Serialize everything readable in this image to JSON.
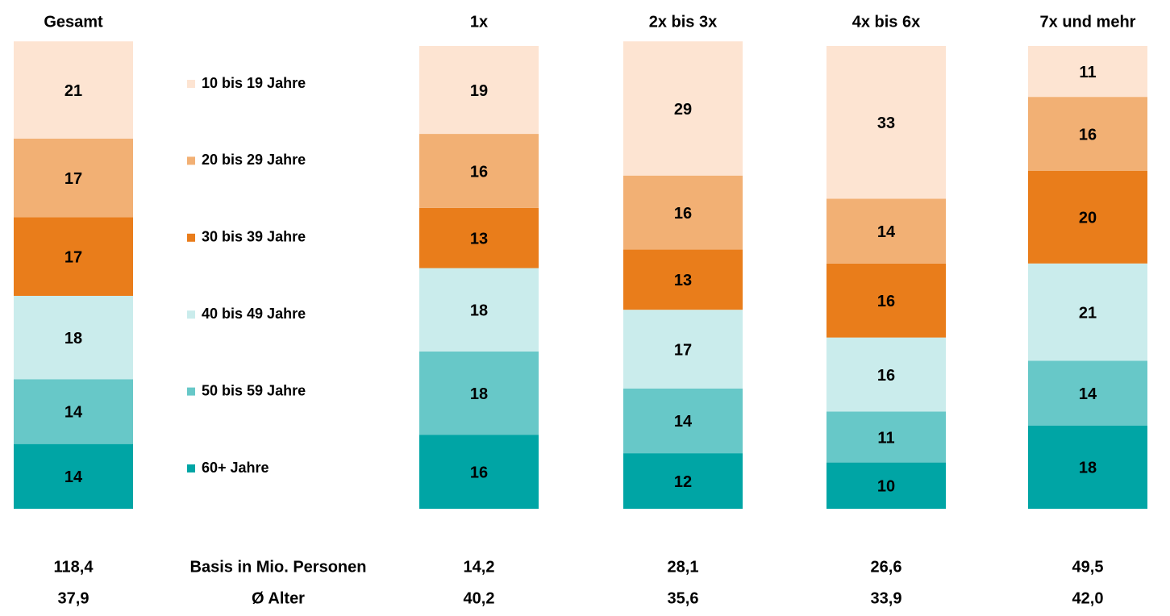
{
  "chart_data": {
    "type": "stacked_bar",
    "categories": [
      "Gesamt",
      "1x",
      "2x bis 3x",
      "4x bis 6x",
      "7x und mehr"
    ],
    "series": [
      {
        "name": "10 bis 19 Jahre",
        "color": "#fde4d2",
        "values": [
          21,
          19,
          29,
          33,
          11
        ]
      },
      {
        "name": "20 bis 29 Jahre",
        "color": "#f2b074",
        "values": [
          17,
          16,
          16,
          14,
          16
        ]
      },
      {
        "name": "30 bis 39 Jahre",
        "color": "#e97d1b",
        "values": [
          17,
          13,
          13,
          16,
          20
        ]
      },
      {
        "name": "40 bis 49 Jahre",
        "color": "#caecec",
        "values": [
          18,
          18,
          17,
          16,
          21
        ]
      },
      {
        "name": "50 bis 59 Jahre",
        "color": "#67c8c8",
        "values": [
          14,
          18,
          14,
          11,
          14
        ]
      },
      {
        "name": "60+ Jahre",
        "color": "#00a5a5",
        "values": [
          14,
          16,
          12,
          10,
          18
        ]
      }
    ],
    "ylim": [
      0,
      100
    ],
    "rows": [
      {
        "label": "Basis in Mio. Personen",
        "values": [
          118.4,
          14.2,
          28.1,
          26.6,
          49.5
        ],
        "value_labels": [
          "118,4",
          "14,2",
          "28,1",
          "26,6",
          "49,5"
        ]
      },
      {
        "label": "Ø Alter",
        "values": [
          37.9,
          40.2,
          35.6,
          33.9,
          42.0
        ],
        "value_labels": [
          "37,9",
          "40,2",
          "35,6",
          "33,9",
          "42,0"
        ]
      }
    ]
  }
}
